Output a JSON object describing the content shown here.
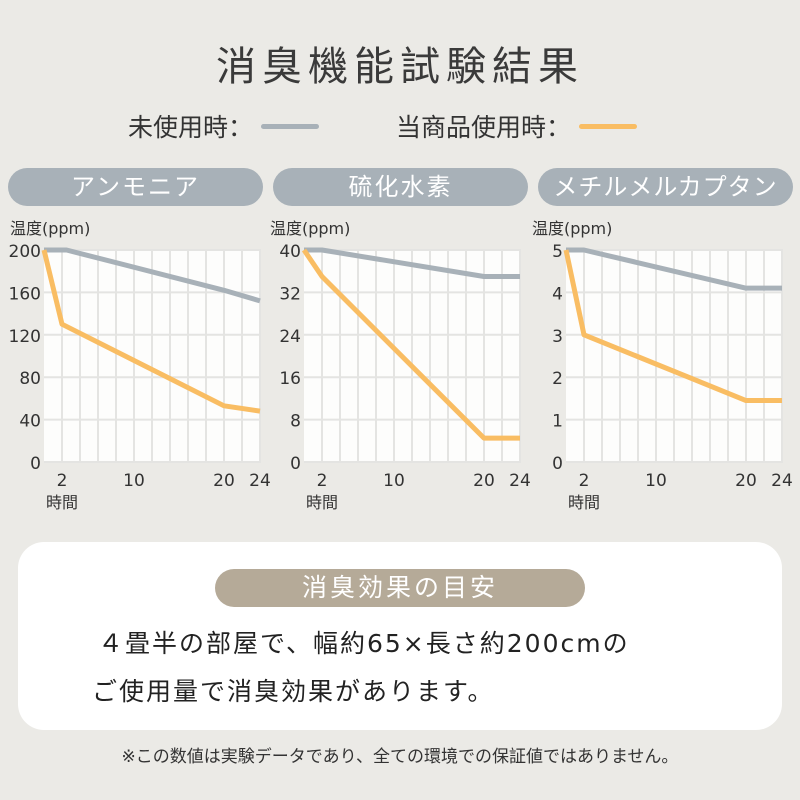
{
  "title": "消臭機能試験結果",
  "legend": [
    {
      "label": "未使用時：",
      "color": "#a8b1b8"
    },
    {
      "label": "当商品使用時：",
      "color": "#f9bd63"
    }
  ],
  "chart_data": [
    {
      "type": "line",
      "title": "アンモニア",
      "ylabel": "温度(ppm)",
      "xlabel": "時間",
      "ylim": [
        0,
        200
      ],
      "yticks": [
        "0",
        "40",
        "80",
        "120",
        "160",
        "200"
      ],
      "xlim": [
        0,
        24
      ],
      "xticks": [
        "2",
        "10",
        "20",
        "24"
      ],
      "grid": true,
      "series": [
        {
          "name": "未使用時",
          "points": [
            [
              0,
              200
            ],
            [
              2.5,
              200
            ],
            [
              20,
              162
            ],
            [
              24,
              152
            ]
          ]
        },
        {
          "name": "当商品使用時",
          "points": [
            [
              0,
              200
            ],
            [
              2,
              130
            ],
            [
              20,
              53
            ],
            [
              24,
              48
            ]
          ]
        }
      ]
    },
    {
      "type": "line",
      "title": "硫化水素",
      "ylabel": "温度(ppm)",
      "xlabel": "時間",
      "ylim": [
        0,
        40
      ],
      "yticks": [
        "0",
        "8",
        "16",
        "24",
        "32",
        "40"
      ],
      "xlim": [
        0,
        24
      ],
      "xticks": [
        "2",
        "10",
        "20",
        "24"
      ],
      "grid": true,
      "series": [
        {
          "name": "未使用時",
          "points": [
            [
              0,
              40
            ],
            [
              2,
              40
            ],
            [
              20,
              35
            ],
            [
              24,
              35
            ]
          ]
        },
        {
          "name": "当商品使用時",
          "points": [
            [
              0,
              40
            ],
            [
              2,
              35
            ],
            [
              20,
              4.5
            ],
            [
              24,
              4.5
            ]
          ]
        }
      ]
    },
    {
      "type": "line",
      "title": "メチルメルカプタン",
      "ylabel": "温度(ppm)",
      "xlabel": "時間",
      "ylim": [
        0,
        5
      ],
      "yticks": [
        "0",
        "1",
        "2",
        "3",
        "4",
        "5"
      ],
      "xlim": [
        0,
        24
      ],
      "xticks": [
        "2",
        "10",
        "20",
        "24"
      ],
      "grid": true,
      "series": [
        {
          "name": "未使用時",
          "points": [
            [
              0,
              5
            ],
            [
              2,
              5
            ],
            [
              20,
              4.1
            ],
            [
              24,
              4.1
            ]
          ]
        },
        {
          "name": "当商品使用時",
          "points": [
            [
              0,
              5
            ],
            [
              2,
              3
            ],
            [
              20,
              1.45
            ],
            [
              24,
              1.45
            ]
          ]
        }
      ]
    }
  ],
  "effect": {
    "tag": "消臭効果の目安",
    "line1": "４畳半の部屋で、幅約65×長さ約200cmの",
    "line2": "ご使用量で消臭効果があります。"
  },
  "note": "※この数値は実験データであり、全ての環境での保証値ではありません。"
}
